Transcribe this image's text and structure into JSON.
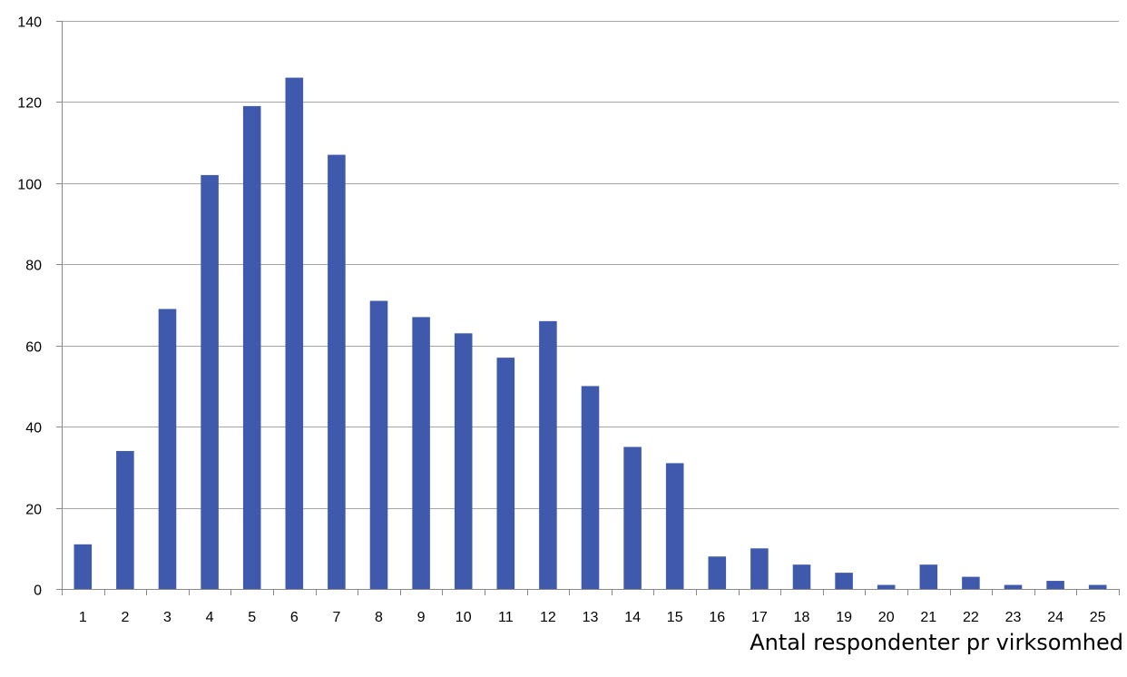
{
  "chart_data": {
    "type": "bar",
    "title": "",
    "xlabel": "Antal respondenter pr virksomhed",
    "ylabel": "",
    "categories": [
      "1",
      "2",
      "3",
      "4",
      "5",
      "6",
      "7",
      "8",
      "9",
      "10",
      "11",
      "12",
      "13",
      "14",
      "15",
      "16",
      "17",
      "18",
      "19",
      "20",
      "21",
      "22",
      "23",
      "24",
      "25"
    ],
    "values": [
      11,
      34,
      69,
      102,
      119,
      126,
      107,
      71,
      67,
      63,
      57,
      66,
      50,
      35,
      31,
      8,
      10,
      6,
      4,
      1,
      6,
      3,
      1,
      2,
      1
    ],
    "ylim": [
      0,
      140
    ],
    "yticks": [
      "0",
      "20",
      "40",
      "60",
      "80",
      "100",
      "120",
      "140"
    ],
    "grid": true,
    "bar_color": "#3f5aad",
    "grid_color": "#a6a6a6",
    "axis_color": "#888888"
  }
}
